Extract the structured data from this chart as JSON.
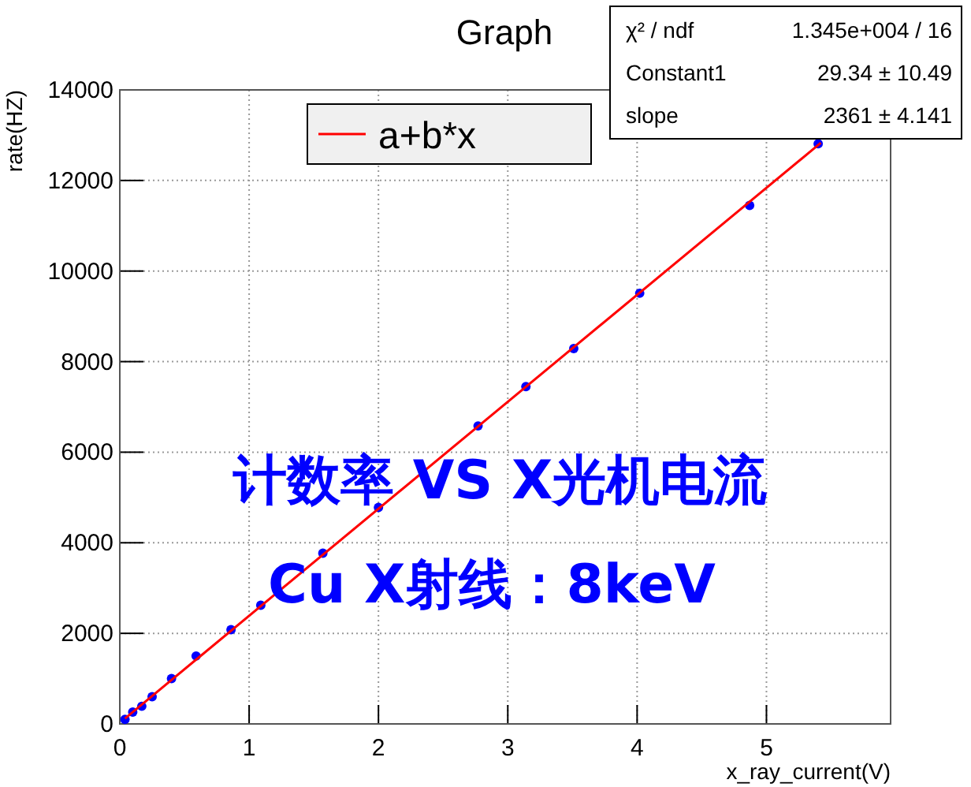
{
  "chart_data": {
    "type": "scatter",
    "title": "Graph",
    "xlabel": "x_ray_current(V)",
    "ylabel": "rate(HZ)",
    "xlim": [
      0,
      5.96
    ],
    "xticks": [
      0,
      1,
      2,
      3,
      4,
      5
    ],
    "ylim": [
      0,
      14000
    ],
    "yticks": [
      0,
      2000,
      4000,
      6000,
      8000,
      10000,
      12000,
      14000
    ],
    "grid": true,
    "legend": "top",
    "marker": "circle",
    "series": [
      {
        "color": "#0000ff",
        "x": [
          0.04,
          0.1,
          0.17,
          0.25,
          0.4,
          0.59,
          0.86,
          1.09,
          1.57,
          2.0,
          2.77,
          3.14,
          3.51,
          4.02,
          4.87,
          5.4
        ],
        "values": [
          100,
          260,
          390,
          600,
          1000,
          1500,
          2080,
          2620,
          3770,
          4780,
          6580,
          7450,
          8290,
          9510,
          11450,
          12810
        ]
      },
      {
        "type": "line",
        "name": "a+b*x",
        "color": "#ff0000",
        "marker": "none",
        "x": [
          0.04,
          5.42
        ],
        "values": [
          120,
          12830
        ]
      }
    ],
    "annotations": [
      "χ² / ndf",
      "1.345e+004 / 16",
      "Constant1",
      "29.34 ± 10.49",
      "slope",
      "2361 ± 4.141",
      "计数率 VS X光机电流",
      "Cu X射线：8keV"
    ]
  }
}
